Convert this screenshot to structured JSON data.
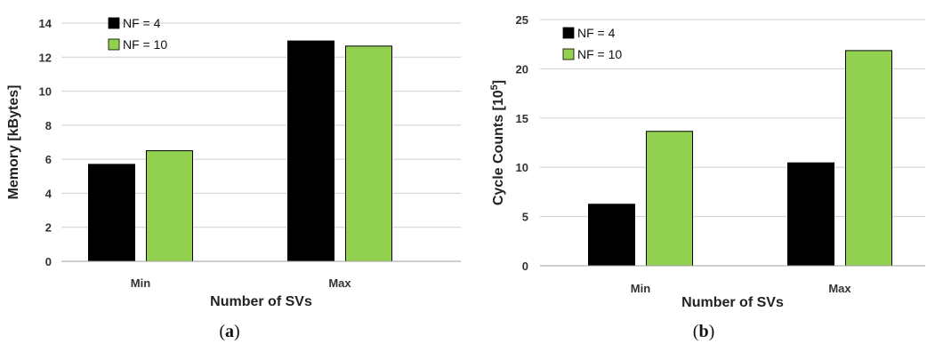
{
  "colors": {
    "nf4": "#000000",
    "nf10": "#92d050"
  },
  "chart_data": [
    {
      "type": "bar",
      "categories": [
        "Min",
        "Max"
      ],
      "series": [
        {
          "name": "NF = 4",
          "values": [
            5.7,
            12.95
          ]
        },
        {
          "name": "NF = 10",
          "values": [
            6.5,
            12.65
          ]
        }
      ],
      "xlabel": "Number of SVs",
      "ylabel": "Memory [kBytes]",
      "ylim": [
        0,
        14
      ],
      "yticks": [
        "0",
        "2",
        "4",
        "6",
        "8",
        "10",
        "12",
        "14"
      ],
      "grid": true,
      "legend": "top-left",
      "caption_label": "a"
    },
    {
      "type": "bar",
      "categories": [
        "Min",
        "Max"
      ],
      "series": [
        {
          "name": "NF = 4",
          "values": [
            6.25,
            10.45
          ]
        },
        {
          "name": "NF = 10",
          "values": [
            13.65,
            21.85
          ]
        }
      ],
      "xlabel": "Number of SVs",
      "ylabel": "Cycle Counts [10",
      "ylabel_superscript": "5",
      "ylabel_suffix": "]",
      "ylim": [
        0,
        25
      ],
      "yticks": [
        "0",
        "5",
        "10",
        "15",
        "20",
        "25"
      ],
      "grid": true,
      "legend": "top-left",
      "caption_label": "b"
    }
  ]
}
